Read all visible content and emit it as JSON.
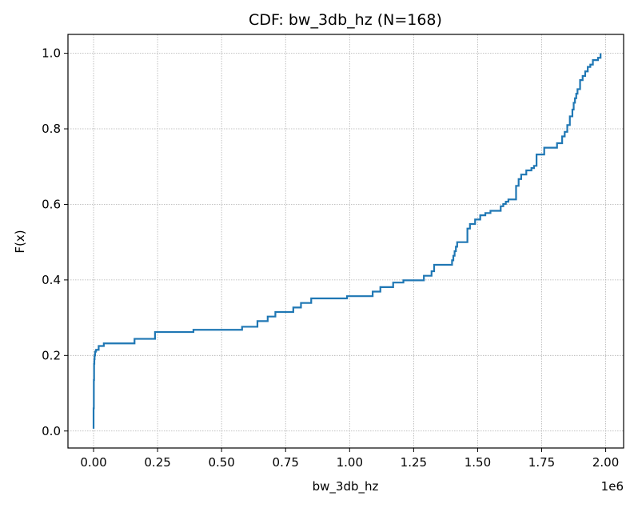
{
  "chart_data": {
    "type": "line",
    "title": "CDF: bw_3db_hz  (N=168)",
    "xlabel": "bw_3db_hz",
    "ylabel": "F(x)",
    "offset_text": "1e6",
    "xlim": [
      -0.1,
      2.07
    ],
    "ylim": [
      -0.045,
      1.05
    ],
    "x_ticks": [
      0.0,
      0.25,
      0.5,
      0.75,
      1.0,
      1.25,
      1.5,
      1.75,
      2.0
    ],
    "x_tick_labels": [
      "0.00",
      "0.25",
      "0.50",
      "0.75",
      "1.00",
      "1.25",
      "1.50",
      "1.75",
      "2.00"
    ],
    "y_ticks": [
      0.0,
      0.2,
      0.4,
      0.6,
      0.8,
      1.0
    ],
    "y_tick_labels": [
      "0.0",
      "0.2",
      "0.4",
      "0.6",
      "0.8",
      "1.0"
    ],
    "grid": true,
    "series": [
      {
        "color": "#1f77b4",
        "step": "post",
        "x": [
          0.0,
          0.0,
          0.001,
          0.002,
          0.003,
          0.004,
          0.006,
          0.008,
          0.01,
          0.02,
          0.04,
          0.16,
          0.24,
          0.39,
          0.58,
          0.64,
          0.68,
          0.71,
          0.78,
          0.81,
          0.85,
          0.99,
          1.09,
          1.12,
          1.17,
          1.21,
          1.29,
          1.32,
          1.33,
          1.4,
          1.405,
          1.41,
          1.415,
          1.42,
          1.46,
          1.47,
          1.49,
          1.51,
          1.53,
          1.55,
          1.59,
          1.6,
          1.61,
          1.62,
          1.65,
          1.66,
          1.67,
          1.69,
          1.71,
          1.72,
          1.73,
          1.76,
          1.81,
          1.83,
          1.84,
          1.85,
          1.86,
          1.87,
          1.875,
          1.88,
          1.885,
          1.89,
          1.9,
          1.91,
          1.92,
          1.93,
          1.94,
          1.95,
          1.97,
          1.98
        ],
        "y": [
          0.006,
          0.06,
          0.135,
          0.178,
          0.19,
          0.2,
          0.209,
          0.212,
          0.215,
          0.225,
          0.232,
          0.244,
          0.262,
          0.268,
          0.276,
          0.291,
          0.303,
          0.315,
          0.327,
          0.339,
          0.351,
          0.357,
          0.369,
          0.381,
          0.393,
          0.399,
          0.411,
          0.423,
          0.44,
          0.452,
          0.464,
          0.476,
          0.488,
          0.5,
          0.536,
          0.548,
          0.56,
          0.571,
          0.577,
          0.583,
          0.595,
          0.601,
          0.607,
          0.613,
          0.649,
          0.667,
          0.679,
          0.69,
          0.696,
          0.702,
          0.732,
          0.75,
          0.762,
          0.78,
          0.792,
          0.81,
          0.833,
          0.851,
          0.869,
          0.881,
          0.893,
          0.905,
          0.929,
          0.94,
          0.952,
          0.964,
          0.97,
          0.982,
          0.988,
          1.0
        ]
      }
    ]
  }
}
